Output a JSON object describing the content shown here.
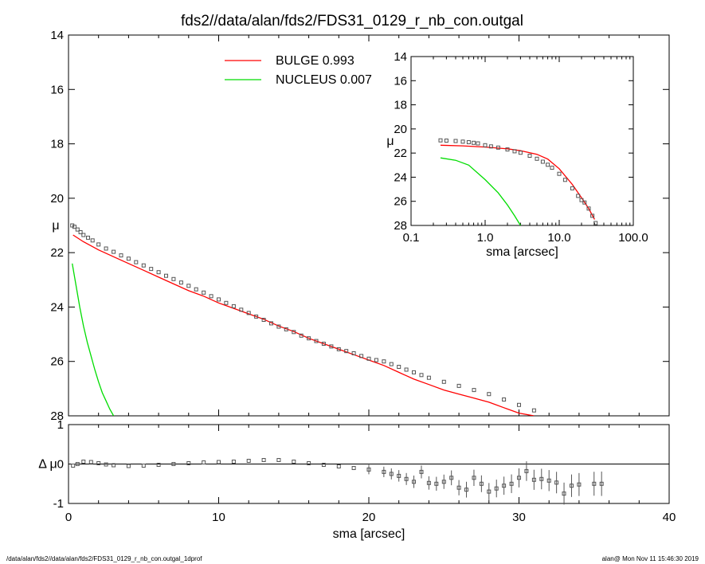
{
  "title": "fds2//data/alan/fds2/FDS31_0129_r_nb_con.outgal",
  "footer": {
    "left": "/data/alan/fds2//data/alan/fds2/FDS31_0129_r_nb_con.outgal_1dprof",
    "right": "alan@  Mon Nov 11 15:46:30 2019"
  },
  "colors": {
    "axes": "#000000",
    "bulge": "#ff0000",
    "nucleus": "#00dd00",
    "points": "#555555"
  },
  "chart_data": [
    {
      "id": "main",
      "type": "line",
      "xlabel": "",
      "ylabel": "μ",
      "xlim": [
        0,
        40
      ],
      "ylim": [
        28,
        14
      ],
      "y_inverted": true,
      "yticks": [
        "14",
        "16",
        "18",
        "20",
        "22",
        "24",
        "26",
        "28"
      ],
      "legend": [
        {
          "label": "BULGE  0.993",
          "color": "#ff0000"
        },
        {
          "label": "NUCLEUS  0.007",
          "color": "#00dd00"
        }
      ],
      "series": [
        {
          "name": "BULGE",
          "color": "#ff0000",
          "style": "line",
          "x": [
            0.3,
            1,
            2,
            3,
            4,
            5,
            6,
            7,
            8,
            9,
            10,
            11,
            12,
            13,
            14,
            15,
            16,
            17,
            18,
            19,
            20,
            21,
            22,
            23,
            24,
            25,
            26,
            27,
            28,
            29,
            30,
            31
          ],
          "y": [
            21.35,
            21.6,
            21.9,
            22.15,
            22.4,
            22.65,
            22.9,
            23.15,
            23.4,
            23.6,
            23.85,
            24.05,
            24.25,
            24.45,
            24.7,
            24.9,
            25.15,
            25.35,
            25.55,
            25.75,
            25.95,
            26.15,
            26.4,
            26.65,
            26.85,
            27.05,
            27.2,
            27.35,
            27.5,
            27.7,
            27.9,
            28.0
          ]
        },
        {
          "name": "NUCLEUS",
          "color": "#00dd00",
          "style": "line",
          "x": [
            0.25,
            0.5,
            0.75,
            1.0,
            1.25,
            1.5,
            1.75,
            2.0,
            2.25,
            2.5,
            2.75,
            3.0
          ],
          "y": [
            22.4,
            23.2,
            24.0,
            24.7,
            25.3,
            25.8,
            26.3,
            26.75,
            27.15,
            27.45,
            27.75,
            28.0
          ]
        },
        {
          "name": "data",
          "color": "#555555",
          "style": "points",
          "x": [
            0.25,
            0.4,
            0.6,
            0.8,
            1.0,
            1.3,
            1.6,
            2.0,
            2.5,
            3.0,
            3.5,
            4.0,
            4.5,
            5.0,
            5.5,
            6.0,
            6.5,
            7.0,
            7.5,
            8.0,
            8.5,
            9.0,
            9.5,
            10.0,
            10.5,
            11.0,
            11.5,
            12.0,
            12.5,
            13.0,
            13.5,
            14.0,
            14.5,
            15.0,
            15.5,
            16.0,
            16.5,
            17.0,
            17.5,
            18.0,
            18.5,
            19.0,
            19.5,
            20.0,
            20.5,
            21.0,
            21.5,
            22.0,
            22.5,
            23.0,
            23.5,
            24.0,
            25.0,
            26.0,
            27.0,
            28.0,
            29.0,
            30.0,
            31.0
          ],
          "y": [
            21.0,
            21.05,
            21.15,
            21.25,
            21.35,
            21.45,
            21.55,
            21.7,
            21.85,
            21.97,
            22.1,
            22.22,
            22.35,
            22.47,
            22.6,
            22.72,
            22.85,
            22.97,
            23.1,
            23.22,
            23.35,
            23.47,
            23.6,
            23.72,
            23.85,
            23.97,
            24.1,
            24.22,
            24.35,
            24.47,
            24.6,
            24.72,
            24.82,
            24.92,
            25.05,
            25.15,
            25.25,
            25.35,
            25.45,
            25.55,
            25.62,
            25.7,
            25.8,
            25.9,
            25.95,
            26.0,
            26.1,
            26.2,
            26.3,
            26.4,
            26.5,
            26.6,
            26.75,
            26.9,
            27.05,
            27.2,
            27.4,
            27.6,
            27.8
          ]
        }
      ]
    },
    {
      "id": "residual",
      "type": "scatter",
      "xlabel": "sma [arcsec]",
      "ylabel": "Δ μ",
      "xlim": [
        0,
        40
      ],
      "ylim": [
        -1,
        1
      ],
      "xticks": [
        "0",
        "10",
        "20",
        "30",
        "40"
      ],
      "yticks": [
        "-1",
        "0",
        "1"
      ],
      "zero_line": true,
      "series": [
        {
          "name": "residual",
          "color": "#555555",
          "style": "points",
          "x": [
            0.3,
            0.6,
            1.0,
            1.5,
            2.0,
            2.5,
            3.0,
            4.0,
            5.0,
            6.0,
            7.0,
            8.0,
            9.0,
            10.0,
            11.0,
            12.0,
            13.0,
            14.0,
            15.0,
            16.0,
            17.0,
            18.0,
            19.0,
            20.0,
            21.0,
            21.5,
            22.0,
            22.5,
            23.0,
            23.5,
            24.0,
            24.5,
            25.0,
            25.5,
            26.0,
            26.5,
            27.0,
            27.5,
            28.0,
            28.5,
            29.0,
            29.5,
            30.0,
            30.5,
            31.0,
            31.5,
            32.0,
            32.5,
            33.0,
            33.5,
            34.0,
            35.0,
            35.5
          ],
          "y": [
            -0.04,
            0.0,
            0.06,
            0.05,
            0.02,
            -0.01,
            -0.03,
            -0.05,
            -0.04,
            -0.02,
            0.0,
            0.02,
            0.04,
            0.05,
            0.06,
            0.08,
            0.1,
            0.1,
            0.06,
            0.02,
            -0.02,
            -0.06,
            -0.1,
            -0.14,
            -0.2,
            -0.25,
            -0.3,
            -0.38,
            -0.45,
            -0.2,
            -0.48,
            -0.5,
            -0.45,
            -0.35,
            -0.6,
            -0.65,
            -0.35,
            -0.5,
            -0.7,
            -0.62,
            -0.55,
            -0.5,
            -0.35,
            -0.18,
            -0.4,
            -0.38,
            -0.42,
            -0.47,
            -0.75,
            -0.55,
            -0.52,
            -0.5,
            -0.5
          ]
        }
      ]
    },
    {
      "id": "inset",
      "type": "line",
      "xlabel": "sma [arcsec]",
      "ylabel": "μ",
      "xscale": "log",
      "xlim": [
        0.1,
        100
      ],
      "ylim": [
        28,
        14
      ],
      "y_inverted": true,
      "xticks": [
        "0.1",
        "1.0",
        "10.0",
        "100.0"
      ],
      "yticks": [
        "14",
        "16",
        "18",
        "20",
        "22",
        "24",
        "26",
        "28"
      ],
      "series": [
        {
          "name": "BULGE",
          "color": "#ff0000",
          "style": "line",
          "x": [
            0.25,
            0.5,
            1.0,
            2.0,
            3.0,
            5.0,
            7.0,
            10.0,
            15.0,
            20.0,
            25.0,
            30.0
          ],
          "y": [
            21.35,
            21.4,
            21.5,
            21.65,
            21.8,
            22.1,
            22.5,
            23.3,
            24.6,
            25.7,
            26.6,
            27.5
          ]
        },
        {
          "name": "NUCLEUS",
          "color": "#00dd00",
          "style": "line",
          "x": [
            0.25,
            0.4,
            0.6,
            1.0,
            1.5,
            2.0,
            2.5,
            3.0
          ],
          "y": [
            22.4,
            22.6,
            23.0,
            24.2,
            25.3,
            26.3,
            27.2,
            28.0
          ]
        },
        {
          "name": "data",
          "color": "#555555",
          "style": "points",
          "x": [
            0.25,
            0.3,
            0.4,
            0.5,
            0.6,
            0.7,
            0.8,
            1.0,
            1.2,
            1.5,
            2.0,
            2.5,
            3.0,
            4.0,
            5.0,
            6.0,
            7.0,
            8.0,
            10.0,
            12.0,
            15.0,
            18.0,
            20.0,
            22.0,
            25.0,
            28.0,
            31.0
          ],
          "y": [
            20.95,
            20.97,
            21.0,
            21.05,
            21.1,
            21.15,
            21.2,
            21.35,
            21.45,
            21.55,
            21.7,
            21.85,
            21.97,
            22.22,
            22.47,
            22.72,
            22.97,
            23.22,
            23.72,
            24.22,
            24.92,
            25.55,
            25.9,
            26.1,
            26.6,
            27.2,
            27.8
          ]
        }
      ]
    }
  ]
}
